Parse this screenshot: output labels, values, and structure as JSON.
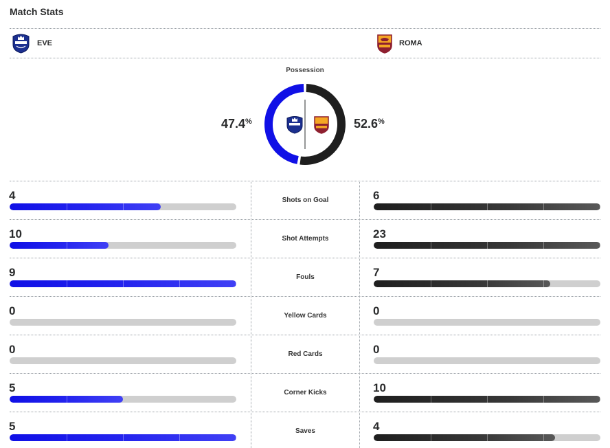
{
  "header": {
    "title": "Match Stats"
  },
  "teams": {
    "home": {
      "abbr": "EVE",
      "color": "#1010e6",
      "crest": "everton-crest-icon"
    },
    "away": {
      "abbr": "ROMA",
      "color": "#1e1e1e",
      "crest": "roma-crest-icon"
    }
  },
  "possession": {
    "label": "Possession",
    "home": "47.4",
    "away": "52.6",
    "unit": "%",
    "home_fraction": 0.474,
    "away_fraction": 0.526
  },
  "stats": [
    {
      "label": "Shots on Goal",
      "home": "4",
      "away": "6",
      "home_fill": 0.667,
      "away_fill": 1.0
    },
    {
      "label": "Shot Attempts",
      "home": "10",
      "away": "23",
      "home_fill": 0.435,
      "away_fill": 1.0
    },
    {
      "label": "Fouls",
      "home": "9",
      "away": "7",
      "home_fill": 1.0,
      "away_fill": 0.778
    },
    {
      "label": "Yellow Cards",
      "home": "0",
      "away": "0",
      "home_fill": 0.0,
      "away_fill": 0.0
    },
    {
      "label": "Red Cards",
      "home": "0",
      "away": "0",
      "home_fill": 0.0,
      "away_fill": 0.0
    },
    {
      "label": "Corner Kicks",
      "home": "5",
      "away": "10",
      "home_fill": 0.5,
      "away_fill": 1.0
    },
    {
      "label": "Saves",
      "home": "5",
      "away": "4",
      "home_fill": 1.0,
      "away_fill": 0.8
    }
  ]
}
